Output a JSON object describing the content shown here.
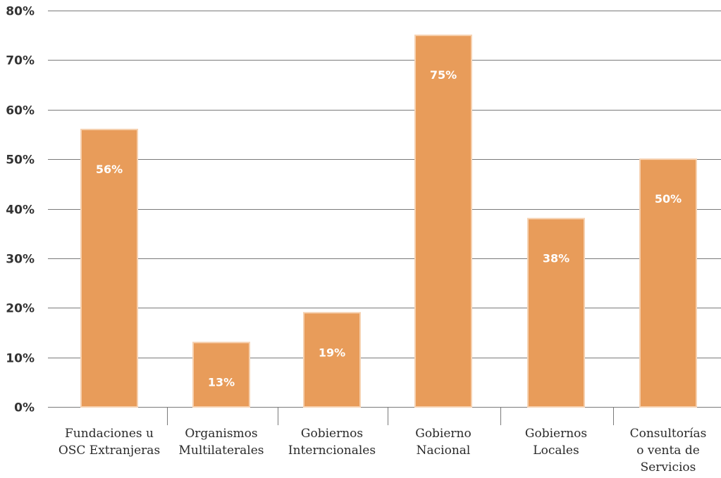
{
  "chart_data": {
    "type": "bar",
    "categories": [
      [
        "Fundaciones u",
        "OSC Extranjeras"
      ],
      [
        "Organismos",
        "Multilaterales"
      ],
      [
        "Gobiernos",
        "Interncionales"
      ],
      [
        "Gobierno",
        "Nacional"
      ],
      [
        "Gobiernos",
        "Locales"
      ],
      [
        "Consultorías",
        "o venta de",
        "Servicios"
      ]
    ],
    "values": [
      56,
      13,
      19,
      75,
      38,
      50
    ],
    "data_labels": [
      "56%",
      "13%",
      "19%",
      "75%",
      "38%",
      "50%"
    ],
    "y_ticks": [
      0,
      10,
      20,
      30,
      40,
      50,
      60,
      70,
      80
    ],
    "y_tick_labels": [
      "0%",
      "10%",
      "20%",
      "30%",
      "40%",
      "50%",
      "60%",
      "70%",
      "80%"
    ],
    "ylim": [
      0,
      80
    ],
    "grid": true,
    "title": "",
    "xlabel": "",
    "ylabel": "",
    "colors": {
      "bar": "#e89c5a",
      "bar_edge": "#f6d1b0",
      "grid": "#7a7a7a",
      "separator": "#7a7a7a",
      "tick_text": "#333333",
      "category_text": "#2a2a2a",
      "data_label_text": "#ffffff"
    }
  }
}
